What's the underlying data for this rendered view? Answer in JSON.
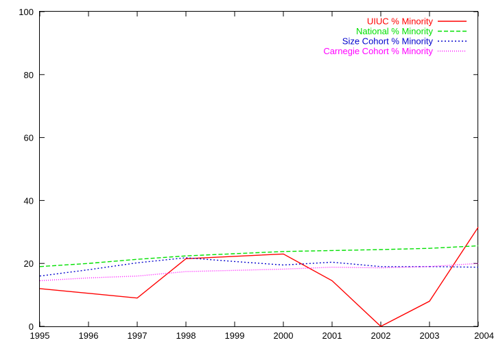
{
  "chart_data": {
    "type": "line",
    "title": "",
    "xlabel": "",
    "ylabel": "",
    "xlim": [
      1995,
      2004
    ],
    "ylim": [
      0,
      100
    ],
    "x_ticks": [
      "1995",
      "1996",
      "1997",
      "1998",
      "1999",
      "2000",
      "2001",
      "2002",
      "2003",
      "2004"
    ],
    "y_ticks": [
      "0",
      "20",
      "40",
      "60",
      "80",
      "100"
    ],
    "grid": false,
    "legend_position": "top-right",
    "series": [
      {
        "name": "UIUC % Minority",
        "color": "#ff0000",
        "dash": "solid",
        "x": [
          1995,
          1997,
          1998,
          2000,
          2001,
          2002,
          2003,
          2004
        ],
        "y": [
          12,
          9,
          21.5,
          23,
          14.5,
          0,
          8,
          31.5
        ]
      },
      {
        "name": "National % Minority",
        "color": "#00e000",
        "dash": "dashed",
        "x": [
          1995,
          1996,
          1997,
          1998,
          1999,
          2000,
          2001,
          2002,
          2003,
          2004
        ],
        "y": [
          19,
          20,
          21.3,
          22.4,
          23.1,
          23.8,
          24.1,
          24.4,
          24.8,
          25.6
        ]
      },
      {
        "name": "Size Cohort % Minority",
        "color": "#0000cc",
        "dash": "dotted",
        "x": [
          1995,
          1996,
          1997,
          1998,
          1999,
          2000,
          2001,
          2002,
          2003,
          2004
        ],
        "y": [
          16,
          18,
          20.2,
          21.8,
          20.6,
          19.5,
          20.4,
          19,
          19,
          18.8
        ]
      },
      {
        "name": "Carnegie Cohort % Minority",
        "color": "#ff00ff",
        "dash": "finedot",
        "x": [
          1995,
          1996,
          1997,
          1998,
          1999,
          2000,
          2001,
          2002,
          2003,
          2004
        ],
        "y": [
          14.5,
          15.4,
          16,
          17.4,
          17.8,
          18.2,
          18.8,
          18.6,
          19,
          20
        ]
      }
    ]
  }
}
